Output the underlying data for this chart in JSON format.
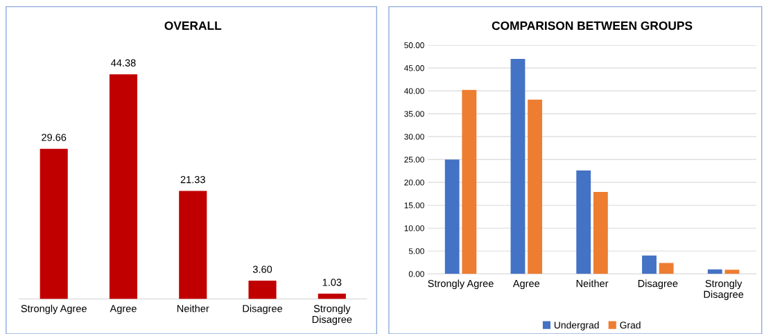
{
  "chart_data": [
    {
      "type": "bar",
      "title": "OVERALL",
      "categories": [
        "Strongly Agree",
        "Agree",
        "Neither",
        "Disagree",
        "Strongly\nDisagree"
      ],
      "values": [
        29.66,
        44.38,
        21.33,
        3.6,
        1.03
      ],
      "value_labels": [
        "29.66",
        "44.38",
        "21.33",
        "3.60",
        "1.03"
      ],
      "color": "#c00000",
      "tick_labels": "x",
      "grid": false,
      "legend": false
    },
    {
      "type": "bar",
      "title": "COMPARISON BETWEEN GROUPS",
      "categories": [
        "Strongly Agree",
        "Agree",
        "Neither",
        "Disagree",
        "Strongly\nDisagree"
      ],
      "series": [
        {
          "name": "Undergrad",
          "color": "#4472c4",
          "values": [
            25.0,
            47.0,
            22.6,
            4.0,
            1.0
          ]
        },
        {
          "name": "Grad",
          "color": "#ed7d31",
          "values": [
            40.2,
            38.1,
            17.9,
            2.4,
            0.9
          ]
        }
      ],
      "ylim": [
        0,
        50
      ],
      "yticks": [
        {
          "value": 0,
          "label": "0.00"
        },
        {
          "value": 5,
          "label": "5.00"
        },
        {
          "value": 10,
          "label": "10.00"
        },
        {
          "value": 15,
          "label": "15.00"
        },
        {
          "value": 20,
          "label": "20.00"
        },
        {
          "value": 25,
          "label": "25.00"
        },
        {
          "value": 30,
          "label": "30.00"
        },
        {
          "value": 35,
          "label": "35.00"
        },
        {
          "value": 40,
          "label": "40.00"
        },
        {
          "value": 45,
          "label": "45.00"
        },
        {
          "value": 50,
          "label": "50.00"
        }
      ],
      "grid": "y",
      "legend": "bottom"
    }
  ]
}
